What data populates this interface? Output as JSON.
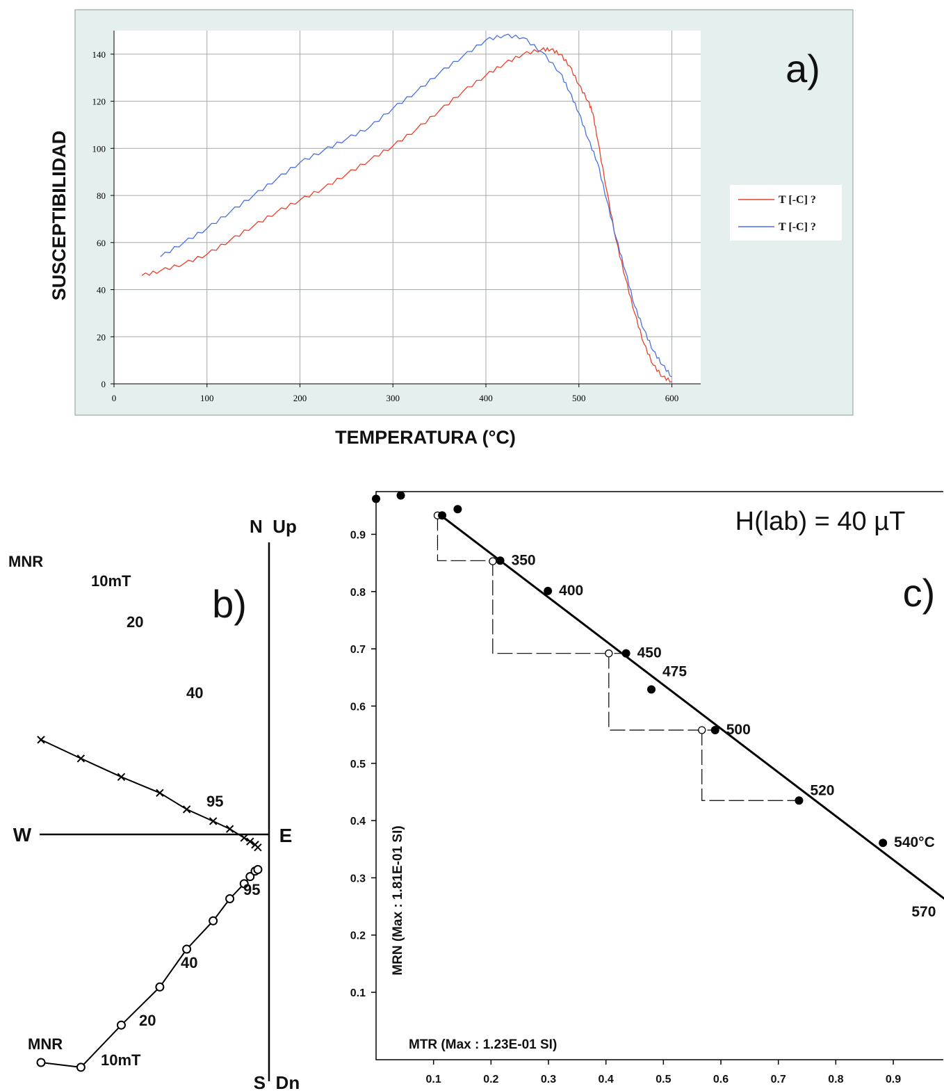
{
  "chart_data": [
    {
      "type": "line",
      "panel_label": "a)",
      "xlabel": "TEMPERATURA (°C)",
      "ylabel": "SUSCEPTIBILIDAD",
      "xlim": [
        0,
        630
      ],
      "ylim": [
        0,
        150
      ],
      "xticks": [
        0,
        100,
        200,
        300,
        400,
        500,
        600
      ],
      "yticks": [
        0,
        20,
        40,
        60,
        80,
        100,
        120,
        140
      ],
      "grid": true,
      "legend_position": "right",
      "series": [
        {
          "name": "T [-C]  ?",
          "color": "#e8402a",
          "x": [
            30,
            50,
            75,
            100,
            125,
            150,
            175,
            200,
            225,
            250,
            275,
            300,
            325,
            350,
            375,
            400,
            420,
            440,
            460,
            470,
            480,
            490,
            500,
            510,
            515,
            520,
            530,
            540,
            550,
            560,
            570,
            580,
            590,
            600
          ],
          "y": [
            46,
            48,
            51,
            55,
            61,
            67,
            73,
            78,
            83,
            89,
            95,
            101,
            108,
            116,
            124,
            131,
            136,
            140,
            142,
            142,
            140,
            135,
            127,
            120,
            115,
            104,
            82,
            61,
            45,
            30,
            17,
            8,
            3,
            1
          ]
        },
        {
          "name": "T [-C]  ?",
          "color": "#4a6fe0",
          "x": [
            50,
            75,
            100,
            125,
            150,
            175,
            200,
            225,
            250,
            275,
            300,
            325,
            350,
            375,
            400,
            420,
            440,
            460,
            480,
            490,
            500,
            510,
            520,
            530,
            540,
            550,
            560,
            570,
            580,
            590,
            600
          ],
          "y": [
            54,
            60,
            66,
            73,
            80,
            87,
            94,
            99,
            104,
            109,
            117,
            124,
            132,
            139,
            146,
            148,
            147,
            141,
            132,
            124,
            115,
            104,
            94,
            78,
            62,
            48,
            33,
            23,
            14,
            8,
            3
          ]
        }
      ]
    },
    {
      "type": "scatter",
      "panel_label": "b)",
      "axis_labels": {
        "north": "N  Up",
        "south": "S  Dn",
        "west": "W",
        "east": "E"
      },
      "series": [
        {
          "name": "horizontal",
          "marker": "cross",
          "labels": {
            "first": "MNR",
            "second": "10mT",
            "third": "20",
            "mid": "40",
            "last": "95"
          },
          "x": [
            -1.0,
            -0.825,
            -0.648,
            -0.479,
            -0.361,
            -0.245,
            -0.172,
            -0.109,
            -0.083,
            -0.061,
            -0.049
          ],
          "y": [
            0.415,
            0.333,
            0.252,
            0.182,
            0.11,
            0.058,
            0.024,
            -0.015,
            -0.031,
            -0.045,
            -0.057
          ]
        },
        {
          "name": "vertical",
          "marker": "open-circle",
          "labels": {
            "first": "MNR",
            "second": "10mT",
            "third": "20",
            "mid": "40",
            "last": "95"
          },
          "x": [
            -1.0,
            -0.825,
            -0.648,
            -0.479,
            -0.361,
            -0.245,
            -0.172,
            -0.109,
            -0.083,
            -0.061,
            -0.049
          ],
          "y": [
            -1.0,
            -1.021,
            -0.836,
            -0.669,
            -0.503,
            -0.379,
            -0.282,
            -0.216,
            -0.185,
            -0.161,
            -0.154
          ]
        }
      ]
    },
    {
      "type": "scatter",
      "panel_label": "c)",
      "annotation": "H(lab) = 40 µT",
      "xlabel": "MTR (Max : 1.23E-01 SI)",
      "ylabel": "MRN (Max : 1.81E-01 SI)",
      "xlim": [
        0,
        1
      ],
      "ylim": [
        0,
        1
      ],
      "xticks": [
        0.1,
        0.2,
        0.3,
        0.4,
        0.5,
        0.6,
        0.7,
        0.8,
        0.9
      ],
      "yticks": [
        0.1,
        0.2,
        0.3,
        0.4,
        0.5,
        0.6,
        0.7,
        0.8,
        0.9
      ],
      "fit_line": {
        "x": [
          0.11,
          1.0
        ],
        "y": [
          0.935,
          0.255
        ]
      },
      "points": [
        {
          "x": 0.0,
          "y": 0.962,
          "label": ""
        },
        {
          "x": 0.043,
          "y": 0.968,
          "label": ""
        },
        {
          "x": 0.142,
          "y": 0.944,
          "label": ""
        },
        {
          "x": 0.115,
          "y": 0.933,
          "label": ""
        },
        {
          "x": 0.216,
          "y": 0.854,
          "label": "350"
        },
        {
          "x": 0.299,
          "y": 0.801,
          "label": "400"
        },
        {
          "x": 0.435,
          "y": 0.692,
          "label": "450"
        },
        {
          "x": 0.479,
          "y": 0.629,
          "label": "475"
        },
        {
          "x": 0.59,
          "y": 0.558,
          "label": "500"
        },
        {
          "x": 0.736,
          "y": 0.435,
          "label": "520"
        },
        {
          "x": 0.882,
          "y": 0.361,
          "label": "540°C"
        },
        {
          "x": 0.996,
          "y": 0.24,
          "label": "570"
        }
      ],
      "checks": [
        {
          "x": 0.107,
          "y": 0.933
        },
        {
          "x": 0.203,
          "y": 0.853
        },
        {
          "x": 0.405,
          "y": 0.692
        },
        {
          "x": 0.567,
          "y": 0.558
        }
      ],
      "checks_legend": {}
    }
  ]
}
